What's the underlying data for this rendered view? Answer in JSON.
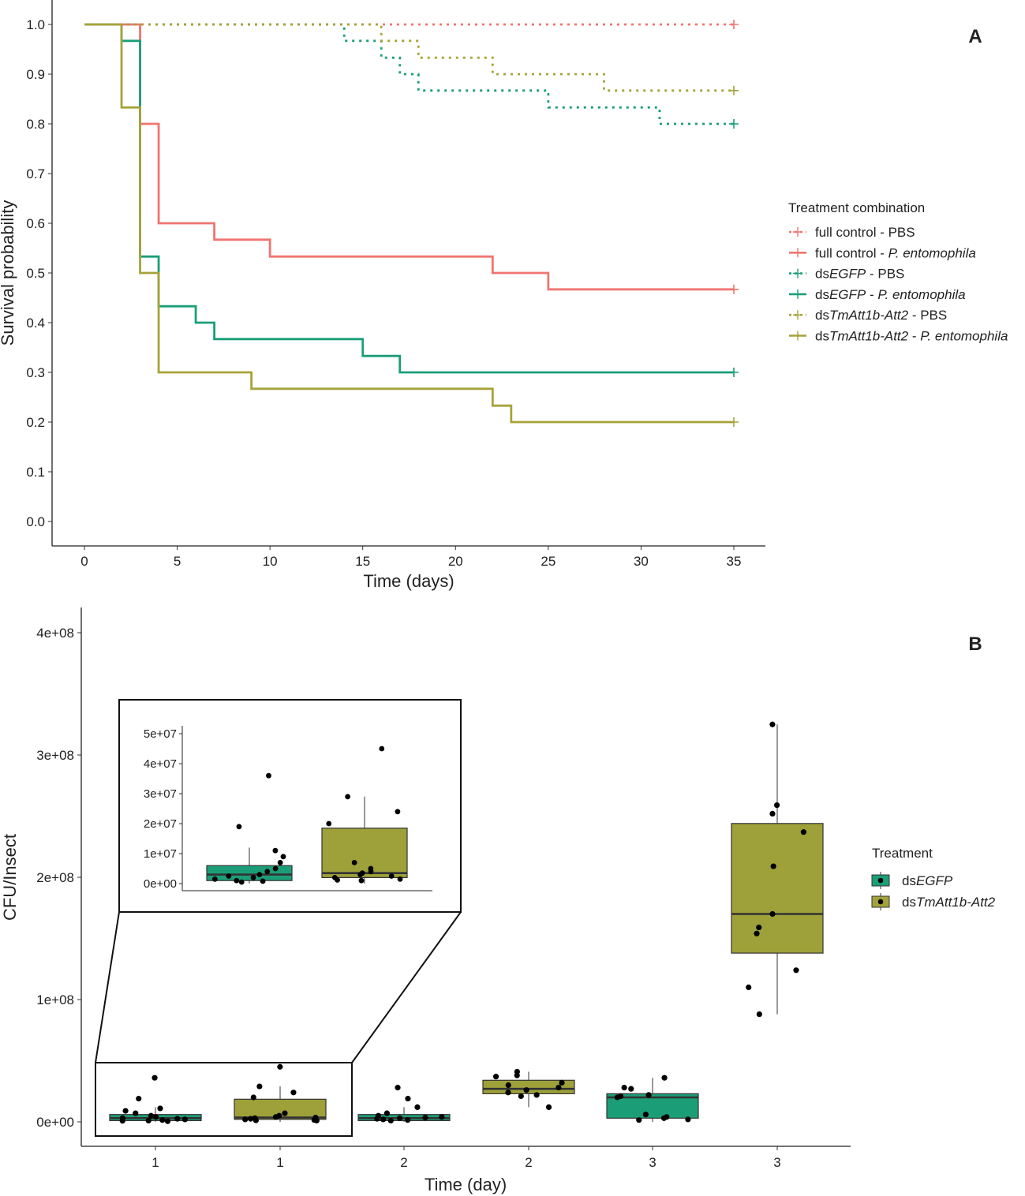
{
  "chart_data": [
    {
      "panel_label": "A",
      "type": "line",
      "subtype": "kaplan-meier-step",
      "xlabel": "Time (days)",
      "ylabel": "Survival probability",
      "xlim": [
        0,
        35
      ],
      "ylim": [
        0,
        1
      ],
      "x_ticks": [
        "0",
        "5",
        "10",
        "15",
        "20",
        "25",
        "30",
        "35"
      ],
      "y_ticks": [
        "0.0",
        "0.1",
        "0.2",
        "0.3",
        "0.4",
        "0.5",
        "0.6",
        "0.7",
        "0.8",
        "0.9",
        "1.0"
      ],
      "legend_title": "Treatment combination",
      "series": [
        {
          "key": "full-control-pbs",
          "prefix": "full control - ",
          "italic": "",
          "suffix": "PBS",
          "color": "#F07470",
          "dash": "dotted",
          "steps": [
            [
              0,
              1.0
            ],
            [
              35,
              1.0
            ]
          ]
        },
        {
          "key": "full-control-pe",
          "prefix": "full control - ",
          "italic": "P. entomophila",
          "suffix": "",
          "color": "#F07470",
          "dash": "solid",
          "steps": [
            [
              0,
              1.0
            ],
            [
              3,
              0.8
            ],
            [
              4,
              0.6
            ],
            [
              7,
              0.567
            ],
            [
              10,
              0.533
            ],
            [
              22,
              0.5
            ],
            [
              25,
              0.467
            ],
            [
              35,
              0.467
            ]
          ]
        },
        {
          "key": "dsegfp-pbs",
          "prefix": "ds",
          "italic": "EGFP",
          "suffix": " - PBS",
          "color": "#1B9E77",
          "dash": "dotted",
          "steps": [
            [
              0,
              1.0
            ],
            [
              14,
              0.967
            ],
            [
              16,
              0.933
            ],
            [
              17,
              0.9
            ],
            [
              18,
              0.867
            ],
            [
              25,
              0.833
            ],
            [
              31,
              0.8
            ],
            [
              35,
              0.8
            ]
          ]
        },
        {
          "key": "dsegfp-pe",
          "prefix": "ds",
          "italic": "EGFP",
          "suffix": " - ",
          "italic2": "P. entomophila",
          "color": "#1B9E77",
          "dash": "solid",
          "steps": [
            [
              0,
              1.0
            ],
            [
              2,
              0.967
            ],
            [
              3,
              0.533
            ],
            [
              4,
              0.433
            ],
            [
              6,
              0.4
            ],
            [
              7,
              0.367
            ],
            [
              15,
              0.333
            ],
            [
              17,
              0.3
            ],
            [
              35,
              0.3
            ]
          ]
        },
        {
          "key": "dstmatt-pbs",
          "prefix": "ds",
          "italic": "TmAtt1b-Att2",
          "suffix": " - PBS",
          "color": "#A6A33A",
          "dash": "dotted",
          "steps": [
            [
              0,
              1.0
            ],
            [
              16,
              0.967
            ],
            [
              18,
              0.933
            ],
            [
              22,
              0.9
            ],
            [
              28,
              0.867
            ],
            [
              35,
              0.867
            ]
          ]
        },
        {
          "key": "dstmatt-pe",
          "prefix": "ds",
          "italic": "TmAtt1b-Att2",
          "suffix": " - ",
          "italic2": "P. entomophila",
          "color": "#A6A33A",
          "dash": "solid",
          "steps": [
            [
              0,
              1.0
            ],
            [
              2,
              0.833
            ],
            [
              3,
              0.5
            ],
            [
              4,
              0.3
            ],
            [
              9,
              0.267
            ],
            [
              22,
              0.233
            ],
            [
              23,
              0.2
            ],
            [
              35,
              0.2
            ]
          ]
        }
      ]
    },
    {
      "panel_label": "B",
      "type": "box",
      "xlabel": "Time (day)",
      "ylabel": "CFU/Insect",
      "ylim": [
        0,
        420000000
      ],
      "y_ticks": [
        {
          "value": 0,
          "label": "0e+00"
        },
        {
          "value": 100000000,
          "label": "1e+08"
        },
        {
          "value": 200000000,
          "label": "2e+08"
        },
        {
          "value": 300000000,
          "label": "3e+08"
        },
        {
          "value": 400000000,
          "label": "4e+08"
        }
      ],
      "legend_title": "Treatment",
      "legend": [
        {
          "prefix": "ds",
          "italic": "EGFP",
          "color": "#1B9E77"
        },
        {
          "prefix": "ds",
          "italic": "TmAtt1b-Att2",
          "color": "#A3A33C"
        }
      ],
      "groups": [
        {
          "label": "1",
          "treatment": "dsEGFP",
          "color": "#1B9E77",
          "q1": 1000000,
          "median": 3000000,
          "q3": 6000000,
          "lower": 0,
          "upper": 12000000,
          "points": [
            36000000,
            11000000,
            9000000,
            7000000,
            5000000,
            4000000,
            3000000,
            2000000,
            1500000,
            1000000,
            19000000,
            2500000,
            500000,
            800000
          ]
        },
        {
          "label": "1",
          "treatment": "dsTmAtt1b-Att2",
          "color": "#9EA03A",
          "q1": 2000000,
          "median": 3500000,
          "q3": 18500000,
          "lower": 0,
          "upper": 29000000,
          "points": [
            45000000,
            29000000,
            24000000,
            20000000,
            7000000,
            5000000,
            3000000,
            2000000,
            1500000,
            1000000,
            2500000,
            4000000,
            3500000,
            1200000
          ]
        },
        {
          "label": "2",
          "treatment": "dsEGFP",
          "color": "#1B9E77",
          "q1": 1000000,
          "median": 3000000,
          "q3": 6000000,
          "lower": 0,
          "upper": 12000000,
          "points": [
            28000000,
            19000000,
            12000000,
            7000000,
            5000000,
            4000000,
            3000000,
            2000000,
            1500000,
            1000000,
            2500000,
            3500000
          ]
        },
        {
          "label": "2",
          "treatment": "dsTmAtt1b-Att2",
          "color": "#9EA03A",
          "q1": 23000000,
          "median": 27000000,
          "q3": 34000000,
          "lower": 12000000,
          "upper": 41000000,
          "points": [
            41000000,
            38000000,
            37000000,
            32000000,
            30000000,
            28000000,
            26000000,
            24000000,
            22000000,
            21000000,
            12000000
          ]
        },
        {
          "label": "3",
          "treatment": "dsEGFP",
          "color": "#1B9E77",
          "q1": 3000000,
          "median": 20000000,
          "q3": 23000000,
          "lower": 0,
          "upper": 36000000,
          "points": [
            36000000,
            28000000,
            27000000,
            22000000,
            21000000,
            20000000,
            6000000,
            4000000,
            3000000,
            2000000,
            1500000
          ]
        },
        {
          "label": "3",
          "treatment": "dsTmAtt1b-Att2",
          "color": "#9EA03A",
          "q1": 138000000,
          "median": 170000000,
          "q3": 244000000,
          "lower": 88000000,
          "upper": 325000000,
          "points": [
            325000000,
            259000000,
            252000000,
            237000000,
            209000000,
            170000000,
            159000000,
            154000000,
            124000000,
            110000000,
            88000000
          ]
        }
      ],
      "inset": {
        "ylim": [
          0,
          50000000
        ],
        "y_ticks": [
          {
            "value": 0,
            "label": "0e+00"
          },
          {
            "value": 10000000,
            "label": "1e+07"
          },
          {
            "value": 20000000,
            "label": "2e+07"
          },
          {
            "value": 30000000,
            "label": "3e+07"
          },
          {
            "value": 40000000,
            "label": "4e+07"
          },
          {
            "value": 50000000,
            "label": "5e+07"
          }
        ],
        "groups_shown": [
          0,
          1
        ]
      }
    }
  ]
}
